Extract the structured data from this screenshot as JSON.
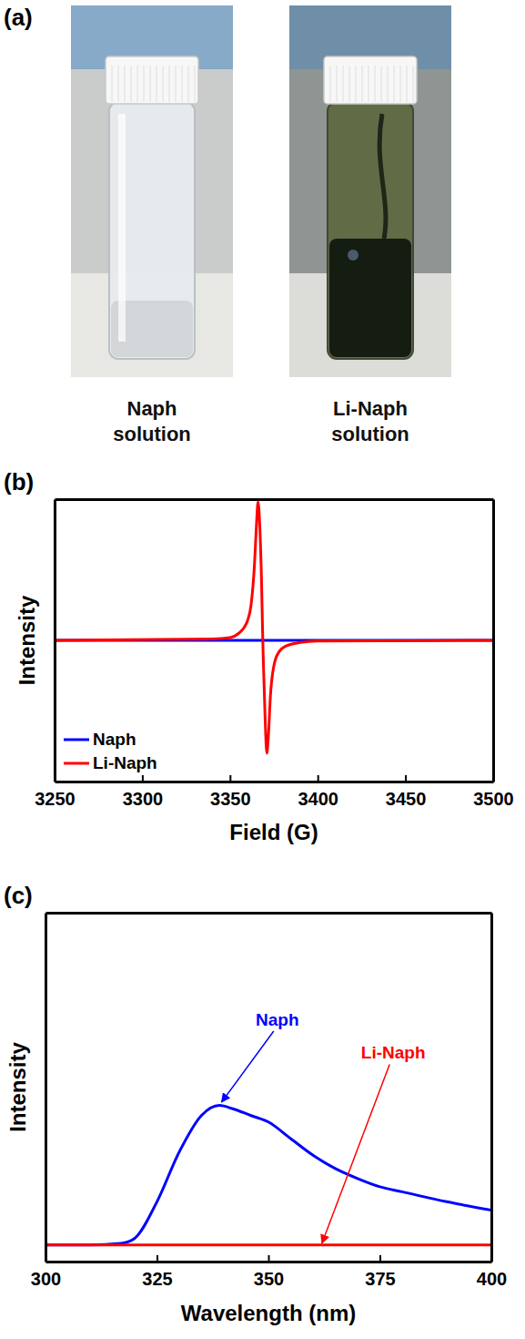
{
  "photo_panel": {
    "panel_label": "(a)",
    "captions": [
      "Naph solution",
      "Li-Naph solution"
    ]
  },
  "chart_data": [
    {
      "type": "line",
      "panel_label": "(b)",
      "x_label": "Field (G)",
      "y_label": "Intensity",
      "xlim": [
        3250,
        3500
      ],
      "xticks": [
        3250,
        3300,
        3350,
        3400,
        3450,
        3500
      ],
      "ylim": [
        -1,
        1
      ],
      "tick_labels": "x",
      "legend": "lower left",
      "series": [
        {
          "name": "Naph",
          "color": "#0000ff",
          "x": [
            3250,
            3360,
            3370,
            3380,
            3500
          ],
          "values": [
            0,
            0,
            0,
            0,
            0
          ]
        },
        {
          "name": "Li-Naph",
          "color": "#ff0000",
          "x": [
            3250,
            3340,
            3350,
            3355,
            3358,
            3360,
            3362,
            3364,
            3365,
            3366,
            3367,
            3368,
            3368.5,
            3369,
            3370,
            3371,
            3372,
            3373,
            3375,
            3378,
            3382,
            3390,
            3400,
            3500
          ],
          "values": [
            0,
            0.01,
            0.02,
            0.05,
            0.09,
            0.14,
            0.25,
            0.55,
            0.8,
            0.98,
            0.8,
            0.4,
            0.1,
            -0.15,
            -0.55,
            -0.8,
            -0.65,
            -0.4,
            -0.18,
            -0.08,
            -0.04,
            -0.015,
            -0.005,
            0
          ]
        }
      ]
    },
    {
      "type": "line",
      "panel_label": "(c)",
      "x_label": "Wavelength (nm)",
      "y_label": "Intensity",
      "xlim": [
        300,
        400
      ],
      "xticks": [
        300,
        325,
        350,
        375,
        400
      ],
      "ylim": [
        -0.05,
        1
      ],
      "tick_labels": "x",
      "series": [
        {
          "name": "Naph",
          "color": "#0000ff",
          "x": [
            300,
            310,
            317,
            320,
            325,
            330,
            335,
            339,
            342,
            346,
            350,
            355,
            360,
            365,
            370,
            375,
            380,
            390,
            400
          ],
          "values": [
            0,
            0,
            0.005,
            0.02,
            0.13,
            0.28,
            0.39,
            0.42,
            0.41,
            0.39,
            0.37,
            0.32,
            0.27,
            0.23,
            0.2,
            0.175,
            0.16,
            0.13,
            0.105
          ]
        },
        {
          "name": "Li-Naph",
          "color": "#ff0000",
          "x": [
            300,
            350,
            400
          ],
          "values": [
            0,
            0,
            0
          ]
        }
      ]
    }
  ]
}
